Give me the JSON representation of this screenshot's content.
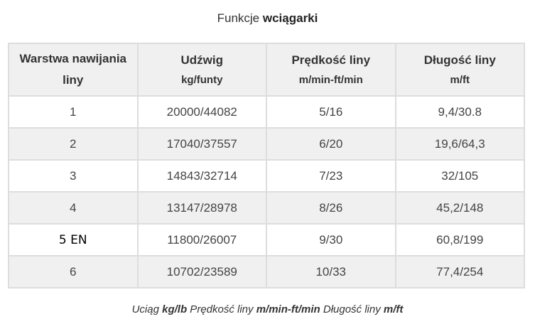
{
  "title": {
    "normal": "Funkcje",
    "bold": "wciągarki"
  },
  "table": {
    "headers": [
      {
        "main": "Warstwa nawijania liny",
        "sub": ""
      },
      {
        "main": "Udźwig",
        "sub": "kg/funty"
      },
      {
        "main": "Prędkość liny",
        "sub": "m/min-ft/min"
      },
      {
        "main": "Długość liny",
        "sub": "m/ft"
      }
    ],
    "rows": [
      [
        "1",
        "20000/44082",
        "5/16",
        "9,4/30.8"
      ],
      [
        "2",
        "17040/37557",
        "6/20",
        "19,6/64,3"
      ],
      [
        "3",
        "14843/32714",
        "7/23",
        "32/105"
      ],
      [
        "4",
        "13147/28978",
        "8/26",
        "45,2/148"
      ],
      [
        "5 EN",
        "11800/26007",
        "9/30",
        "60,8/199"
      ],
      [
        "6",
        "10702/23589",
        "10/33",
        "77,4/254"
      ]
    ]
  },
  "caption": [
    {
      "text": "Uciąg ",
      "bold": false
    },
    {
      "text": "kg/lb",
      "bold": true
    },
    {
      "text": " Prędkość liny ",
      "bold": false
    },
    {
      "text": "m/min-ft/min",
      "bold": true
    },
    {
      "text": " Długość liny ",
      "bold": false
    },
    {
      "text": "m/ft",
      "bold": true
    }
  ]
}
